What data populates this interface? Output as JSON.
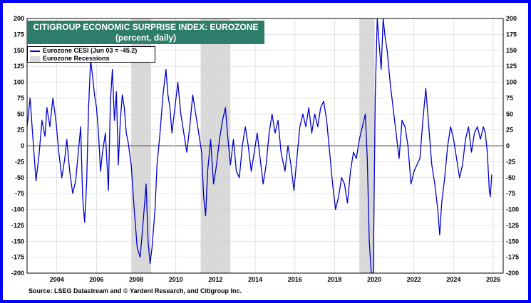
{
  "chart_data": {
    "type": "line",
    "title": "CITIGROUP ECONOMIC SURPRISE INDEX: EUROZONE",
    "subtitle": "(percent, daily)",
    "source": "Source: LSEG Datastream and © Yardeni Research, and Citigroup Inc.",
    "ylim": [
      -200,
      200
    ],
    "xlim": [
      2003.0,
      2027.0
    ],
    "y_ticks": [
      "200",
      "175",
      "150",
      "125",
      "100",
      "75",
      "50",
      "25",
      "0",
      "-25",
      "-50",
      "-75",
      "-100",
      "-125",
      "-150",
      "-175",
      "-200"
    ],
    "x_ticks": [
      "2004",
      "2006",
      "2008",
      "2010",
      "2012",
      "2014",
      "2016",
      "2018",
      "2020",
      "2022",
      "2024",
      "2026"
    ],
    "grid": true,
    "legend_position": "top-left",
    "colors": {
      "series": "#0000cc",
      "recession": "#d9d9d9",
      "title_bg": "#2e7d6b",
      "frame": "#0000ff"
    },
    "series": [
      {
        "name": "Eurozone CESI (Jun 03 = -45.2)",
        "points": [
          [
            2003.0,
            30
          ],
          [
            2003.15,
            75
          ],
          [
            2003.3,
            10
          ],
          [
            2003.45,
            -55
          ],
          [
            2003.6,
            -15
          ],
          [
            2003.75,
            40
          ],
          [
            2003.9,
            15
          ],
          [
            2004.0,
            60
          ],
          [
            2004.15,
            30
          ],
          [
            2004.3,
            75
          ],
          [
            2004.45,
            40
          ],
          [
            2004.6,
            -10
          ],
          [
            2004.75,
            -50
          ],
          [
            2004.9,
            -20
          ],
          [
            2005.0,
            10
          ],
          [
            2005.15,
            -40
          ],
          [
            2005.3,
            -75
          ],
          [
            2005.45,
            -55
          ],
          [
            2005.55,
            -20
          ],
          [
            2005.7,
            30
          ],
          [
            2005.8,
            -80
          ],
          [
            2005.9,
            -120
          ],
          [
            2006.0,
            -60
          ],
          [
            2006.1,
            60
          ],
          [
            2006.2,
            135
          ],
          [
            2006.3,
            110
          ],
          [
            2006.4,
            80
          ],
          [
            2006.5,
            60
          ],
          [
            2006.6,
            20
          ],
          [
            2006.7,
            -40
          ],
          [
            2006.8,
            -10
          ],
          [
            2006.95,
            20
          ],
          [
            2007.1,
            -70
          ],
          [
            2007.2,
            70
          ],
          [
            2007.3,
            120
          ],
          [
            2007.4,
            40
          ],
          [
            2007.5,
            85
          ],
          [
            2007.6,
            -30
          ],
          [
            2007.7,
            40
          ],
          [
            2007.8,
            80
          ],
          [
            2007.9,
            60
          ],
          [
            2008.0,
            20
          ],
          [
            2008.1,
            5
          ],
          [
            2008.25,
            -30
          ],
          [
            2008.4,
            -100
          ],
          [
            2008.55,
            -160
          ],
          [
            2008.7,
            -175
          ],
          [
            2008.85,
            -120
          ],
          [
            2009.0,
            -60
          ],
          [
            2009.1,
            -150
          ],
          [
            2009.2,
            -185
          ],
          [
            2009.3,
            -160
          ],
          [
            2009.45,
            -100
          ],
          [
            2009.55,
            -30
          ],
          [
            2009.7,
            20
          ],
          [
            2009.85,
            80
          ],
          [
            2010.0,
            120
          ],
          [
            2010.1,
            80
          ],
          [
            2010.2,
            60
          ],
          [
            2010.3,
            20
          ],
          [
            2010.45,
            60
          ],
          [
            2010.6,
            100
          ],
          [
            2010.75,
            50
          ],
          [
            2010.9,
            20
          ],
          [
            2011.05,
            -10
          ],
          [
            2011.2,
            30
          ],
          [
            2011.35,
            80
          ],
          [
            2011.5,
            50
          ],
          [
            2011.65,
            20
          ],
          [
            2011.8,
            -10
          ],
          [
            2011.9,
            -80
          ],
          [
            2012.0,
            -110
          ],
          [
            2012.1,
            -40
          ],
          [
            2012.25,
            10
          ],
          [
            2012.4,
            -60
          ],
          [
            2012.55,
            -30
          ],
          [
            2012.7,
            10
          ],
          [
            2012.85,
            40
          ],
          [
            2013.0,
            60
          ],
          [
            2013.1,
            20
          ],
          [
            2013.25,
            -30
          ],
          [
            2013.4,
            10
          ],
          [
            2013.55,
            -40
          ],
          [
            2013.7,
            -50
          ],
          [
            2013.85,
            0
          ],
          [
            2014.0,
            30
          ],
          [
            2014.15,
            0
          ],
          [
            2014.3,
            -40
          ],
          [
            2014.45,
            -10
          ],
          [
            2014.6,
            20
          ],
          [
            2014.75,
            -20
          ],
          [
            2014.9,
            -60
          ],
          [
            2015.05,
            -30
          ],
          [
            2015.2,
            20
          ],
          [
            2015.35,
            50
          ],
          [
            2015.5,
            20
          ],
          [
            2015.65,
            40
          ],
          [
            2015.8,
            -10
          ],
          [
            2016.0,
            -40
          ],
          [
            2016.15,
            0
          ],
          [
            2016.3,
            -30
          ],
          [
            2016.45,
            -70
          ],
          [
            2016.6,
            -20
          ],
          [
            2016.75,
            30
          ],
          [
            2016.9,
            50
          ],
          [
            2017.05,
            30
          ],
          [
            2017.2,
            60
          ],
          [
            2017.35,
            20
          ],
          [
            2017.5,
            50
          ],
          [
            2017.65,
            30
          ],
          [
            2017.8,
            60
          ],
          [
            2017.95,
            70
          ],
          [
            2018.1,
            40
          ],
          [
            2018.25,
            -10
          ],
          [
            2018.4,
            -60
          ],
          [
            2018.55,
            -100
          ],
          [
            2018.7,
            -80
          ],
          [
            2018.85,
            -50
          ],
          [
            2019.0,
            -60
          ],
          [
            2019.15,
            -90
          ],
          [
            2019.3,
            -40
          ],
          [
            2019.45,
            -10
          ],
          [
            2019.6,
            -20
          ],
          [
            2019.75,
            10
          ],
          [
            2019.9,
            30
          ],
          [
            2020.05,
            50
          ],
          [
            2020.15,
            -20
          ],
          [
            2020.25,
            -150
          ],
          [
            2020.35,
            -200
          ],
          [
            2020.45,
            -200
          ],
          [
            2020.55,
            80
          ],
          [
            2020.65,
            200
          ],
          [
            2020.75,
            160
          ],
          [
            2020.85,
            120
          ],
          [
            2020.95,
            200
          ],
          [
            2021.05,
            170
          ],
          [
            2021.15,
            150
          ],
          [
            2021.3,
            100
          ],
          [
            2021.45,
            60
          ],
          [
            2021.6,
            20
          ],
          [
            2021.75,
            -20
          ],
          [
            2021.9,
            40
          ],
          [
            2022.05,
            30
          ],
          [
            2022.2,
            0
          ],
          [
            2022.35,
            -60
          ],
          [
            2022.5,
            -40
          ],
          [
            2022.65,
            -30
          ],
          [
            2022.8,
            -20
          ],
          [
            2022.95,
            40
          ],
          [
            2023.1,
            90
          ],
          [
            2023.25,
            30
          ],
          [
            2023.4,
            -30
          ],
          [
            2023.55,
            -60
          ],
          [
            2023.7,
            -100
          ],
          [
            2023.8,
            -140
          ],
          [
            2023.9,
            -90
          ],
          [
            2024.05,
            -50
          ],
          [
            2024.2,
            0
          ],
          [
            2024.35,
            30
          ],
          [
            2024.5,
            10
          ],
          [
            2024.65,
            -20
          ],
          [
            2024.8,
            -50
          ],
          [
            2024.95,
            -30
          ],
          [
            2025.1,
            10
          ],
          [
            2025.25,
            30
          ],
          [
            2025.4,
            -10
          ],
          [
            2025.55,
            20
          ],
          [
            2025.7,
            30
          ],
          [
            2025.85,
            10
          ],
          [
            2026.0,
            30
          ],
          [
            2026.1,
            20
          ],
          [
            2026.2,
            -10
          ],
          [
            2026.3,
            -70
          ],
          [
            2026.35,
            -80
          ],
          [
            2026.42,
            -45.2
          ]
        ]
      }
    ],
    "recessions": {
      "name": "Eurozone Recessions",
      "periods": [
        [
          2008.25,
          2009.25
        ],
        [
          2011.75,
          2013.25
        ],
        [
          2019.75,
          2020.5
        ]
      ]
    }
  }
}
